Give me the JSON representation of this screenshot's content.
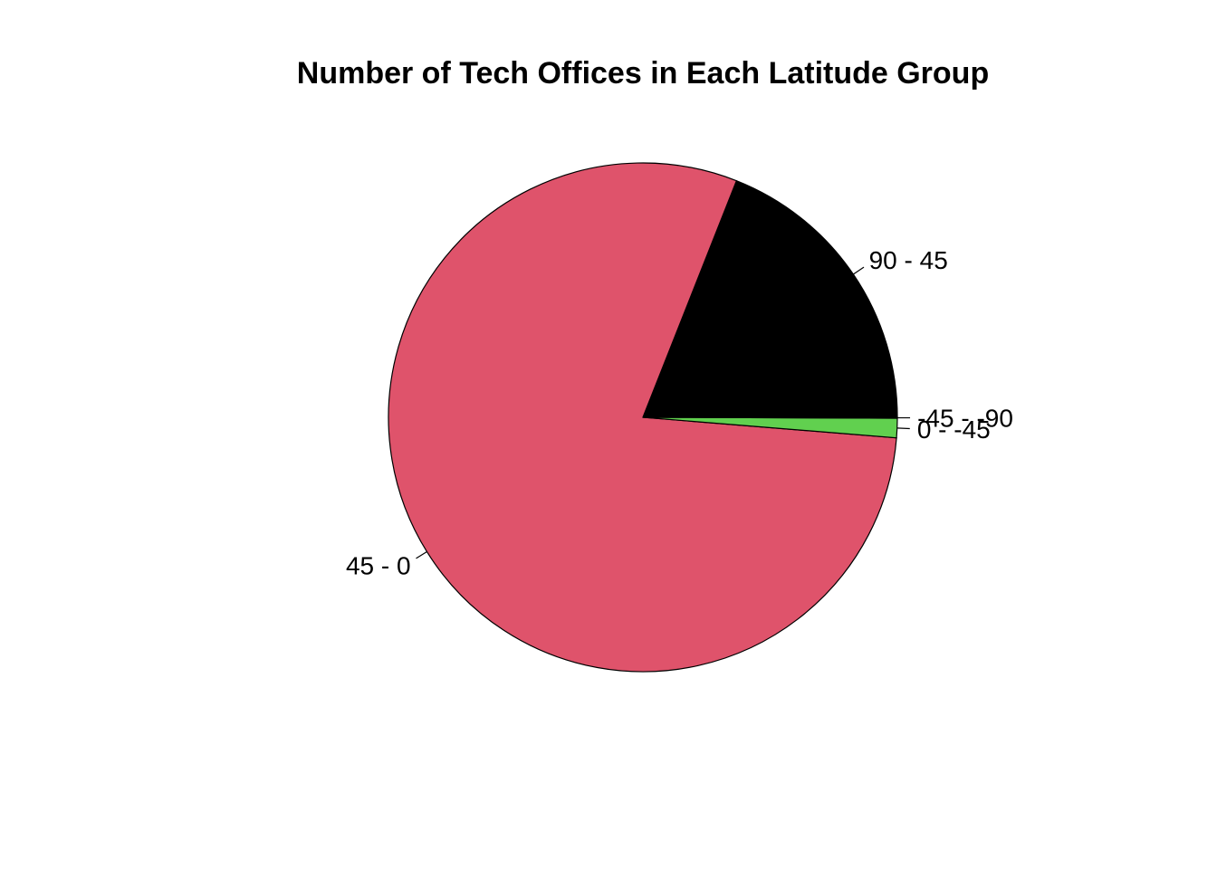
{
  "chart_data": {
    "type": "pie",
    "title": "Number of Tech Offices in Each Latitude Group",
    "start": "3 o'clock",
    "direction": "counterclockwise",
    "slices": [
      {
        "label": "90 - 45",
        "value": 31,
        "color": "#000000"
      },
      {
        "label": "45 - 0",
        "value": 130,
        "color": "#DF536B"
      },
      {
        "label": "0 - -45",
        "value": 2,
        "color": "#61D04F"
      },
      {
        "label": "-45 - -90",
        "value": 0.1,
        "color": "#2297E6"
      }
    ],
    "outline_color": "#000000"
  }
}
